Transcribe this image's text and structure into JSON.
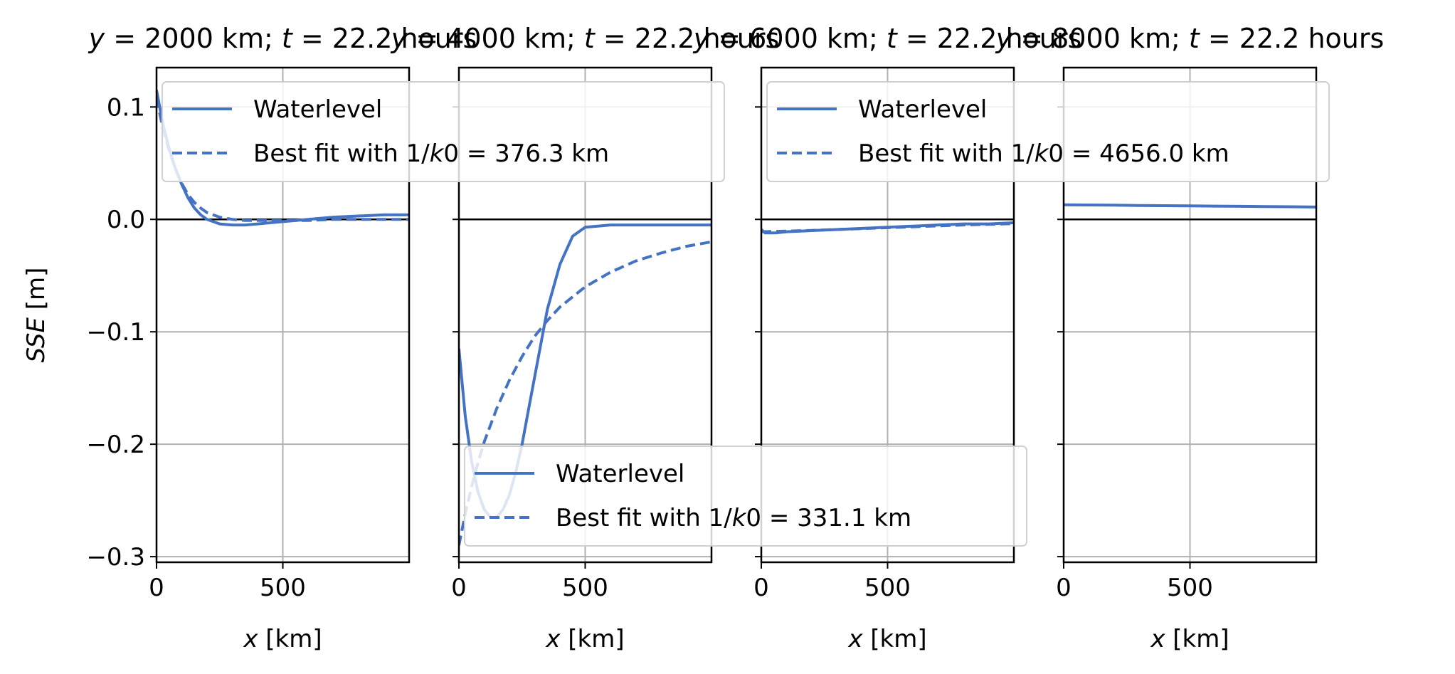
{
  "figure": {
    "ylabel": "SSE [m]",
    "xlabel": "x [km]"
  },
  "chart_data": [
    {
      "type": "line",
      "title": "y = 2000 km; t = 22.2 hours",
      "xlabel": "x [km]",
      "ylabel": "SSE [m]",
      "xlim": [
        0,
        1000
      ],
      "ylim": [
        -0.305,
        0.135
      ],
      "xticks": [
        0,
        500
      ],
      "yticks": [
        -0.3,
        -0.2,
        -0.1,
        0.0,
        0.1
      ],
      "grid": true,
      "legend_position": "top-left",
      "series": [
        {
          "name": "Waterlevel",
          "style": "solid",
          "x": [
            0,
            25,
            50,
            75,
            100,
            125,
            150,
            175,
            200,
            250,
            300,
            350,
            400,
            500,
            600,
            700,
            800,
            900,
            1000
          ],
          "y": [
            0.115,
            0.085,
            0.063,
            0.045,
            0.031,
            0.019,
            0.01,
            0.004,
            0.0,
            -0.004,
            -0.005,
            -0.005,
            -0.004,
            -0.002,
            0.0,
            0.002,
            0.003,
            0.004,
            0.004
          ]
        },
        {
          "name": "Best fit with 1/k0 = 376.3 km",
          "style": "dashed",
          "x": [
            0,
            25,
            50,
            75,
            100,
            125,
            150,
            175,
            200,
            250,
            300,
            350,
            400,
            500,
            600,
            700,
            800,
            900,
            1000
          ],
          "y": [
            0.108,
            0.081,
            0.061,
            0.045,
            0.032,
            0.022,
            0.015,
            0.01,
            0.006,
            0.002,
            0.0,
            -0.001,
            -0.001,
            -0.001,
            -0.001,
            0.0,
            0.0,
            0.0,
            0.0
          ]
        }
      ]
    },
    {
      "type": "line",
      "title": "y = 4000 km; t = 22.2 hours",
      "xlabel": "x [km]",
      "xlim": [
        0,
        1000
      ],
      "ylim": [
        -0.305,
        0.135
      ],
      "xticks": [
        0,
        500
      ],
      "grid": true,
      "legend_position": "bottom-left",
      "series": [
        {
          "name": "Waterlevel",
          "style": "solid",
          "x": [
            0,
            25,
            50,
            75,
            100,
            125,
            150,
            175,
            200,
            225,
            250,
            275,
            300,
            325,
            350,
            400,
            450,
            500,
            550,
            600,
            700,
            800,
            900,
            1000
          ],
          "y": [
            -0.115,
            -0.175,
            -0.215,
            -0.242,
            -0.258,
            -0.265,
            -0.265,
            -0.258,
            -0.245,
            -0.225,
            -0.2,
            -0.17,
            -0.14,
            -0.11,
            -0.08,
            -0.04,
            -0.015,
            -0.007,
            -0.006,
            -0.005,
            -0.005,
            -0.005,
            -0.005,
            -0.005
          ]
        },
        {
          "name": "Best fit with 1/k0 = 331.1 km",
          "style": "dashed",
          "x": [
            0,
            25,
            50,
            75,
            100,
            150,
            200,
            250,
            300,
            350,
            400,
            500,
            600,
            700,
            800,
            900,
            1000
          ],
          "y": [
            -0.29,
            -0.262,
            -0.238,
            -0.217,
            -0.198,
            -0.168,
            -0.143,
            -0.122,
            -0.104,
            -0.09,
            -0.078,
            -0.06,
            -0.047,
            -0.037,
            -0.03,
            -0.024,
            -0.02
          ]
        }
      ]
    },
    {
      "type": "line",
      "title": "y = 6000 km; t = 22.2 hours",
      "xlabel": "x [km]",
      "xlim": [
        0,
        1000
      ],
      "ylim": [
        -0.305,
        0.135
      ],
      "xticks": [
        0,
        500
      ],
      "grid": true,
      "legend_position": "top-left",
      "series": [
        {
          "name": "Waterlevel",
          "style": "solid",
          "x": [
            0,
            15,
            30,
            60,
            100,
            200,
            300,
            400,
            500,
            600,
            700,
            800,
            900,
            1000
          ],
          "y": [
            -0.009,
            -0.012,
            -0.012,
            -0.012,
            -0.011,
            -0.01,
            -0.009,
            -0.008,
            -0.007,
            -0.006,
            -0.005,
            -0.004,
            -0.004,
            -0.003
          ]
        },
        {
          "name": "Best fit with 1/k0 = 4656.0 km",
          "style": "dashed",
          "x": [
            0,
            100,
            200,
            300,
            400,
            500,
            600,
            700,
            800,
            900,
            1000
          ],
          "y": [
            -0.011,
            -0.0105,
            -0.0098,
            -0.009,
            -0.0082,
            -0.0074,
            -0.0066,
            -0.0058,
            -0.005,
            -0.0044,
            -0.0038
          ]
        }
      ]
    },
    {
      "type": "line",
      "title": "y = 8000 km; t = 22.2 hours",
      "xlabel": "x [km]",
      "xlim": [
        0,
        1000
      ],
      "ylim": [
        -0.305,
        0.135
      ],
      "xticks": [
        0,
        500
      ],
      "grid": true,
      "series": [
        {
          "name": "Waterlevel",
          "style": "solid",
          "x": [
            0,
            100,
            200,
            300,
            400,
            500,
            600,
            700,
            800,
            900,
            1000
          ],
          "y": [
            0.013,
            0.0128,
            0.0126,
            0.0124,
            0.0122,
            0.012,
            0.0118,
            0.0116,
            0.0114,
            0.0112,
            0.011
          ]
        }
      ]
    }
  ],
  "colors": {
    "line": "#4472c4",
    "grid": "#b0b0b0",
    "axis": "#000000"
  }
}
